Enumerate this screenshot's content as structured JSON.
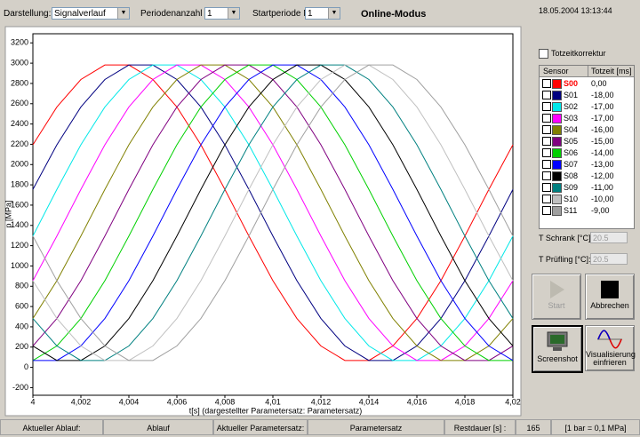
{
  "toolbar": {
    "darstellung_label": "Darstellung:",
    "darstellung_value": "Signalverlauf",
    "perioden_label": "Periodenanzahl N:",
    "perioden_value": "1",
    "start_label": "Startperiode M:",
    "start_value": "1",
    "mode": "Online-Modus"
  },
  "chart_data": {
    "type": "line",
    "xlabel": "t[s]  (dargestellter Parametersatz: Parametersatz)",
    "ylabel": "p [MPa]",
    "x": [
      4,
      4.001,
      4.002,
      4.003,
      4.004,
      4.005,
      4.006,
      4.007,
      4.008,
      4.009,
      4.01,
      4.011,
      4.012,
      4.013,
      4.014,
      4.015,
      4.016,
      4.017,
      4.018,
      4.019,
      4.02
    ],
    "xlim": [
      4,
      4.02
    ],
    "xticks": [
      4,
      {
        "value": 4.002,
        "label": "4,002"
      },
      {
        "value": 4.004,
        "label": "4,004"
      },
      {
        "value": 4.006,
        "label": "4,006"
      },
      {
        "value": 4.008,
        "label": "4,008"
      },
      {
        "value": 4.01,
        "label": "4,01"
      },
      {
        "value": 4.012,
        "label": "4,012"
      },
      {
        "value": 4.014,
        "label": "4,014"
      },
      {
        "value": 4.016,
        "label": "4,016"
      },
      {
        "value": 4.018,
        "label": "4,018"
      },
      {
        "value": 4.02,
        "label": "4,02"
      }
    ],
    "ylim": [
      -275,
      3290
    ],
    "yticks": [
      -200,
      0,
      200,
      400,
      600,
      800,
      1000,
      1200,
      1400,
      1600,
      1800,
      2000,
      2200,
      2400,
      2600,
      2800,
      3000,
      3200
    ],
    "grid": false,
    "series": [
      {
        "name": "S00",
        "color": "#ff0000",
        "values": [
          2195,
          2568,
          2839,
          2982,
          2982,
          2839,
          2568,
          2195,
          1755,
          1295,
          855,
          482,
          211,
          68,
          68,
          211,
          482,
          855,
          1295,
          1755,
          2195
        ]
      },
      {
        "name": "S01",
        "color": "#000080",
        "values": [
          1755,
          2195,
          2568,
          2839,
          2982,
          2982,
          2839,
          2568,
          2195,
          1755,
          1295,
          855,
          482,
          211,
          68,
          68,
          211,
          482,
          855,
          1295,
          1755
        ]
      },
      {
        "name": "S02",
        "color": "#00e8e8",
        "values": [
          1295,
          1755,
          2195,
          2568,
          2839,
          2982,
          2982,
          2839,
          2568,
          2195,
          1755,
          1295,
          855,
          482,
          211,
          68,
          68,
          211,
          482,
          855,
          1295
        ]
      },
      {
        "name": "S03",
        "color": "#ff00ff",
        "values": [
          855,
          1295,
          1755,
          2195,
          2568,
          2839,
          2982,
          2982,
          2839,
          2568,
          2195,
          1755,
          1295,
          855,
          482,
          211,
          68,
          68,
          211,
          482,
          855
        ]
      },
      {
        "name": "S04",
        "color": "#808000",
        "values": [
          482,
          855,
          1295,
          1755,
          2195,
          2568,
          2839,
          2982,
          2982,
          2839,
          2568,
          2195,
          1755,
          1295,
          855,
          482,
          211,
          68,
          68,
          211,
          482
        ]
      },
      {
        "name": "S05",
        "color": "#800080",
        "values": [
          211,
          482,
          855,
          1295,
          1755,
          2195,
          2568,
          2839,
          2982,
          2982,
          2839,
          2568,
          2195,
          1755,
          1295,
          855,
          482,
          211,
          68,
          68,
          211
        ]
      },
      {
        "name": "S06",
        "color": "#00d000",
        "values": [
          68,
          211,
          482,
          855,
          1295,
          1755,
          2195,
          2568,
          2839,
          2982,
          2982,
          2839,
          2568,
          2195,
          1755,
          1295,
          855,
          482,
          211,
          68,
          68
        ]
      },
      {
        "name": "S07",
        "color": "#0000ff",
        "values": [
          68,
          68,
          211,
          482,
          855,
          1295,
          1755,
          2195,
          2568,
          2839,
          2982,
          2982,
          2839,
          2568,
          2195,
          1755,
          1295,
          855,
          482,
          211,
          68
        ]
      },
      {
        "name": "S08",
        "color": "#000000",
        "values": [
          211,
          68,
          68,
          211,
          482,
          855,
          1295,
          1755,
          2195,
          2568,
          2839,
          2982,
          2982,
          2839,
          2568,
          2195,
          1755,
          1295,
          855,
          482,
          211
        ]
      },
      {
        "name": "S09",
        "color": "#008080",
        "values": [
          482,
          211,
          68,
          68,
          211,
          482,
          855,
          1295,
          1755,
          2195,
          2568,
          2839,
          2982,
          2982,
          2839,
          2568,
          2195,
          1755,
          1295,
          855,
          482
        ]
      },
      {
        "name": "S10",
        "color": "#c0c0c0",
        "values": [
          855,
          482,
          211,
          68,
          68,
          211,
          482,
          855,
          1295,
          1755,
          2195,
          2568,
          2839,
          2982,
          2982,
          2839,
          2568,
          2195,
          1755,
          1295,
          855
        ]
      },
      {
        "name": "S11",
        "color": "#a0a0a0",
        "values": [
          1295,
          855,
          482,
          211,
          68,
          68,
          211,
          482,
          855,
          1295,
          1755,
          2195,
          2568,
          2839,
          2982,
          2982,
          2839,
          2568,
          2195,
          1755,
          1295
        ]
      }
    ]
  },
  "side_panel": {
    "timestamp": "18.05.2004 13:13:44",
    "checkbox": "Totzeitkorrektur",
    "table_headers": [
      "Sensor",
      "Totzeit [ms]"
    ],
    "totzeit": [
      "0,00",
      "-18,00",
      "-17,00",
      "-17,00",
      "-16,00",
      "-15,00",
      "-14,00",
      "-13,00",
      "-12,00",
      "-11,00",
      "-10,00",
      "-9,00"
    ],
    "t_schrank_label": "T Schrank [°C]:",
    "t_schrank_value": "20.5",
    "t_pruefling_label": "T Prüfling [°C]:",
    "t_pruefling_value": "20.5",
    "buttons": [
      "Start",
      "Abbrechen",
      "Screenshot",
      "Visualisierung einfrieren"
    ]
  },
  "status_bar": [
    "Aktueller Ablauf:",
    "Ablauf",
    "Aktueller Parametersatz:",
    "Parametersatz",
    "Restdauer [s] :",
    "165",
    "[1 bar = 0,1 MPa]"
  ]
}
